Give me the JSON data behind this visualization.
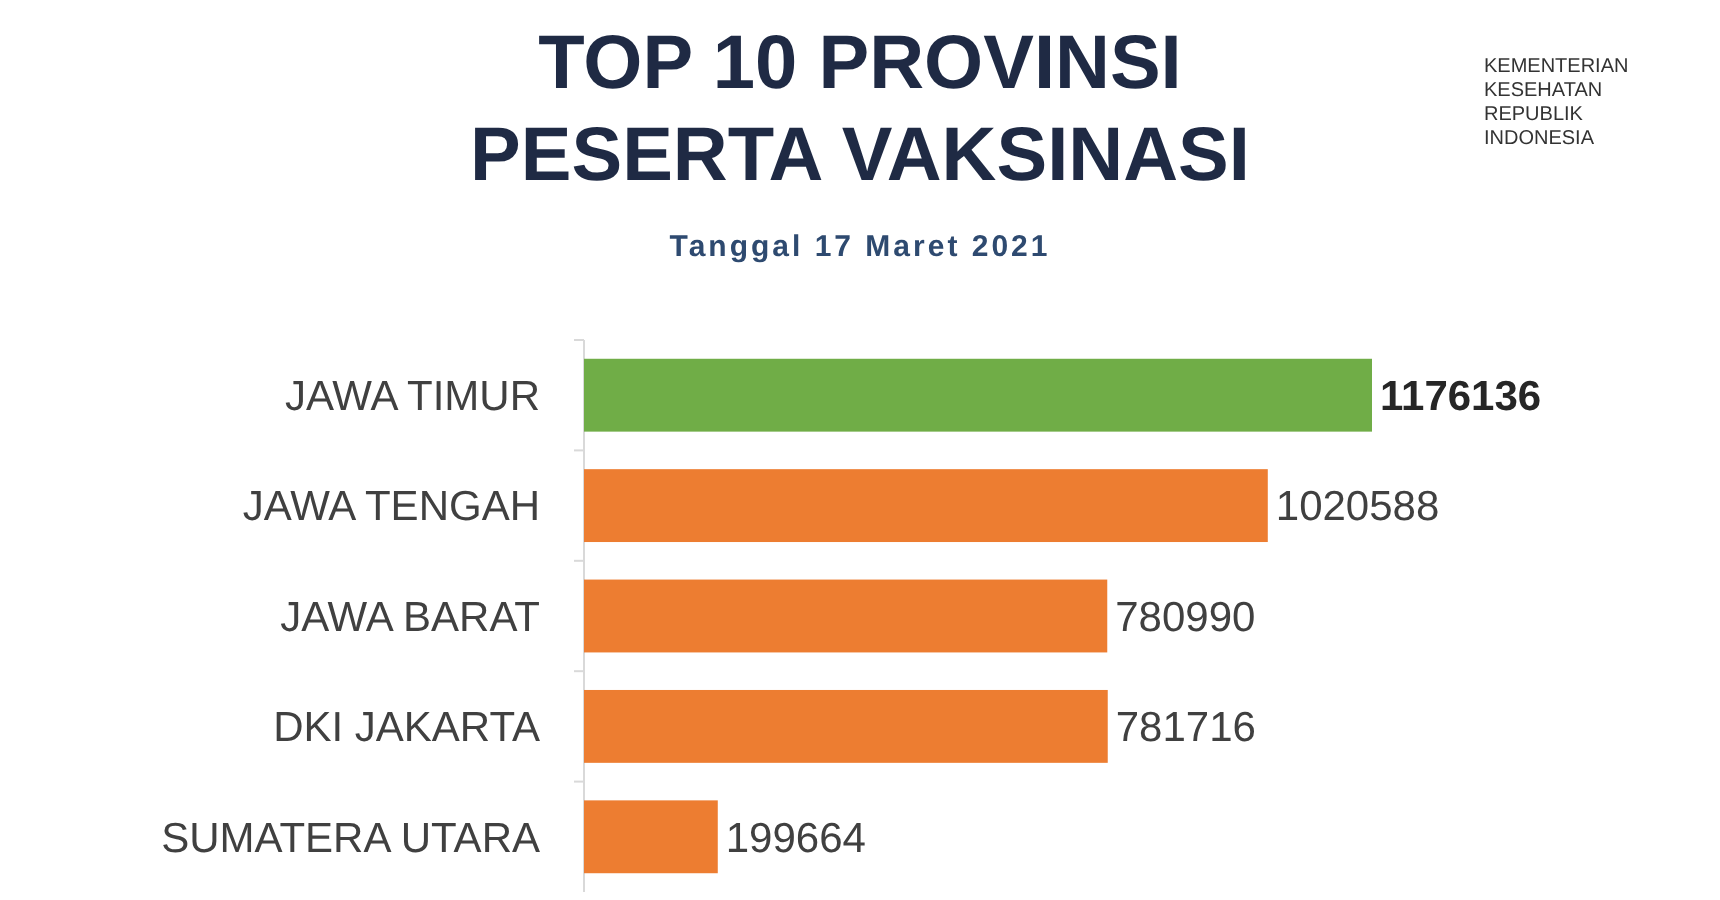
{
  "chart_data": {
    "type": "bar",
    "orientation": "horizontal",
    "title": "TOP 10 PROVINSI PESERTA VAKSINASI",
    "subtitle": "Tanggal 17 Maret 2021",
    "categories": [
      "JAWA TIMUR",
      "JAWA TENGAH",
      "JAWA BARAT",
      "DKI JAKARTA",
      "SUMATERA UTARA"
    ],
    "values": [
      1176136,
      1020588,
      780990,
      781716,
      199664
    ],
    "colors": [
      "#70ad47",
      "#ed7d31",
      "#ed7d31",
      "#ed7d31",
      "#ed7d31"
    ],
    "data_labels": true,
    "annotations": [
      "KEMENTERIAN KESEHATAN REPUBLIK INDONESIA"
    ]
  }
}
